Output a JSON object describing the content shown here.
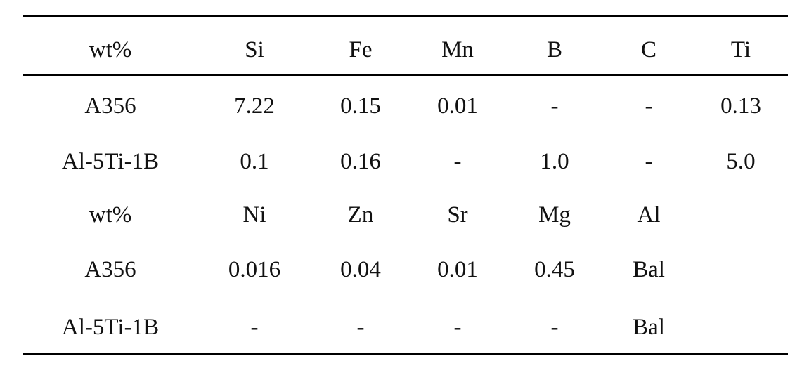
{
  "table": {
    "header": [
      "wt%",
      "Si",
      "Fe",
      "Mn",
      "B",
      "C",
      "Ti"
    ],
    "rows": [
      [
        "A356",
        "7.22",
        "0.15",
        "0.01",
        "-",
        "-",
        "0.13"
      ],
      [
        "Al-5Ti-1B",
        "0.1",
        "0.16",
        "-",
        "1.0",
        "-",
        "5.0"
      ],
      [
        "wt%",
        "Ni",
        "Zn",
        "Sr",
        "Mg",
        "Al",
        ""
      ],
      [
        "A356",
        "0.016",
        "0.04",
        "0.01",
        "0.45",
        "Bal",
        ""
      ],
      [
        "Al-5Ti-1B",
        "-",
        "-",
        "-",
        "-",
        "Bal",
        ""
      ]
    ]
  }
}
